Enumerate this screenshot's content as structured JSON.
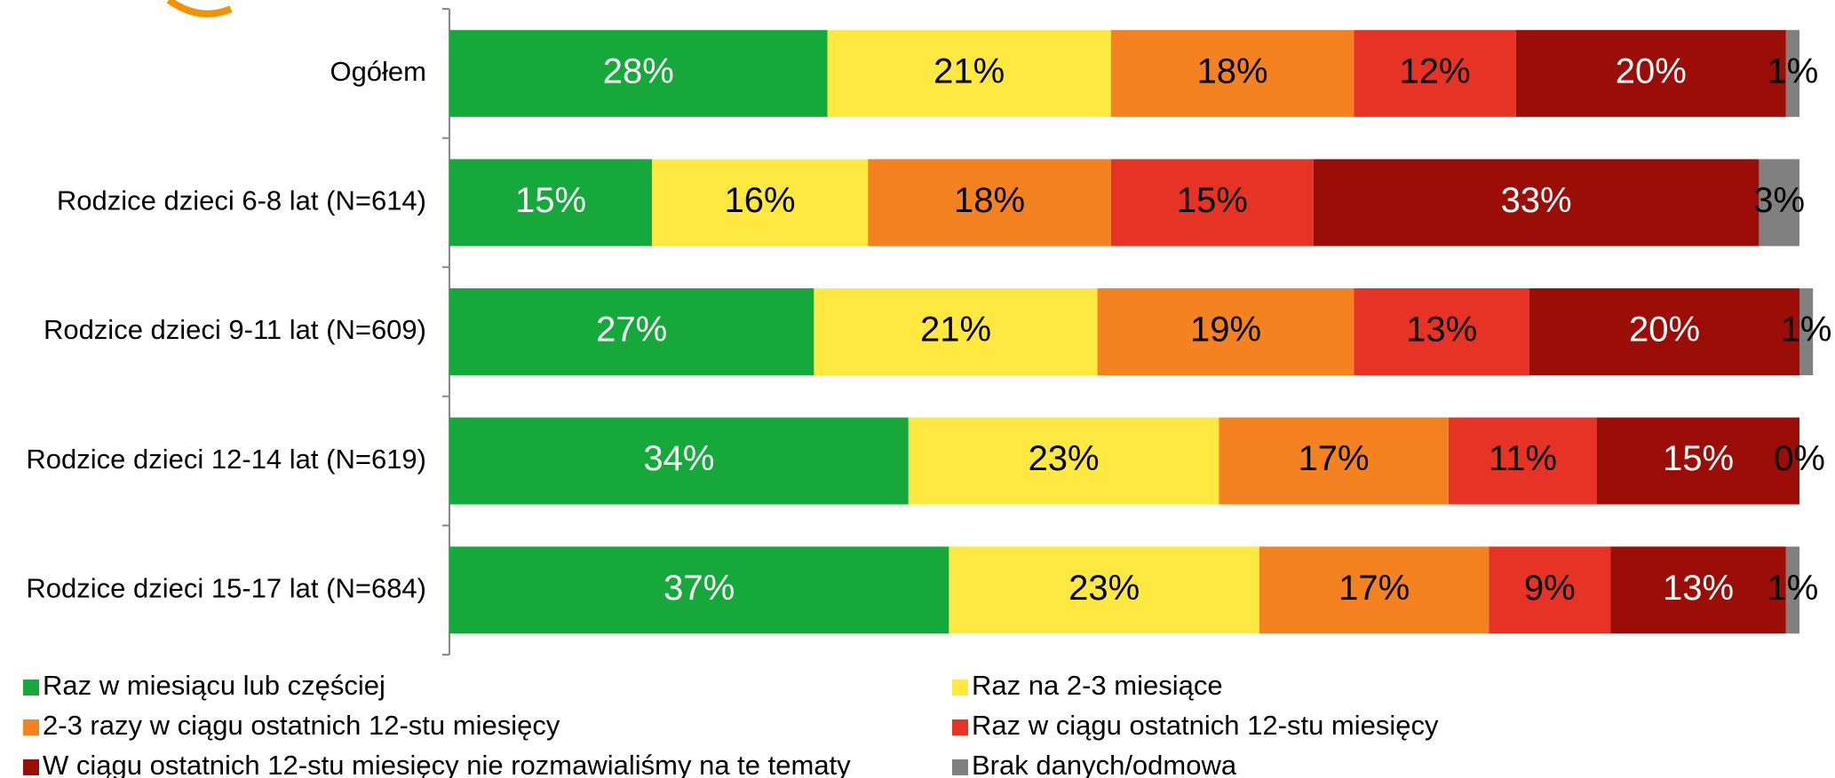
{
  "chart_data": {
    "type": "stacked_bar_horizontal",
    "categories": [
      "Ogółem",
      "Rodzice dzieci 6-8 lat (N=614)",
      "Rodzice dzieci 9-11 lat (N=609)",
      "Rodzice dzieci 12-14 lat (N=619)",
      "Rodzice dzieci 15-17 lat (N=684)"
    ],
    "xlim": [
      0,
      100
    ],
    "series": [
      {
        "name": "Raz w miesiącu lub częściej",
        "color": "#17a83c",
        "label_color": "#ffffff",
        "values": [
          28,
          15,
          27,
          34,
          37
        ],
        "value_labels": [
          "28%",
          "15%",
          "27%",
          "34%",
          "37%"
        ]
      },
      {
        "name": "Raz na 2-3 miesiące",
        "color": "#ffe840",
        "label_color": "#000000",
        "values": [
          21,
          16,
          21,
          23,
          23
        ],
        "value_labels": [
          "21%",
          "16%",
          "21%",
          "23%",
          "23%"
        ]
      },
      {
        "name": "2-3 razy w ciągu ostatnich 12-stu miesięcy",
        "color": "#f58220",
        "label_color": "#000000",
        "values": [
          18,
          18,
          19,
          17,
          17
        ],
        "value_labels": [
          "18%",
          "18%",
          "19%",
          "17%",
          "17%"
        ]
      },
      {
        "name": "Raz w ciągu ostatnich 12-stu miesięcy",
        "color": "#e63325",
        "label_color": "#000000",
        "values": [
          12,
          15,
          13,
          11,
          9
        ],
        "value_labels": [
          "12%",
          "15%",
          "13%",
          "11%",
          "9%"
        ]
      },
      {
        "name": "W ciągu ostatnich 12-stu miesięcy nie rozmawialiśmy na te tematy",
        "color": "#9b0e07",
        "label_color": "#ffffff",
        "values": [
          20,
          33,
          20,
          15,
          13
        ],
        "value_labels": [
          "20%",
          "33%",
          "20%",
          "15%",
          "13%"
        ]
      },
      {
        "name": "Brak danych/odmowa",
        "color": "#808080",
        "label_color": "#000000",
        "values": [
          1,
          3,
          1,
          0,
          1
        ],
        "value_labels": [
          "1%",
          "3%",
          "1%",
          "0%",
          "1%"
        ]
      }
    ]
  }
}
